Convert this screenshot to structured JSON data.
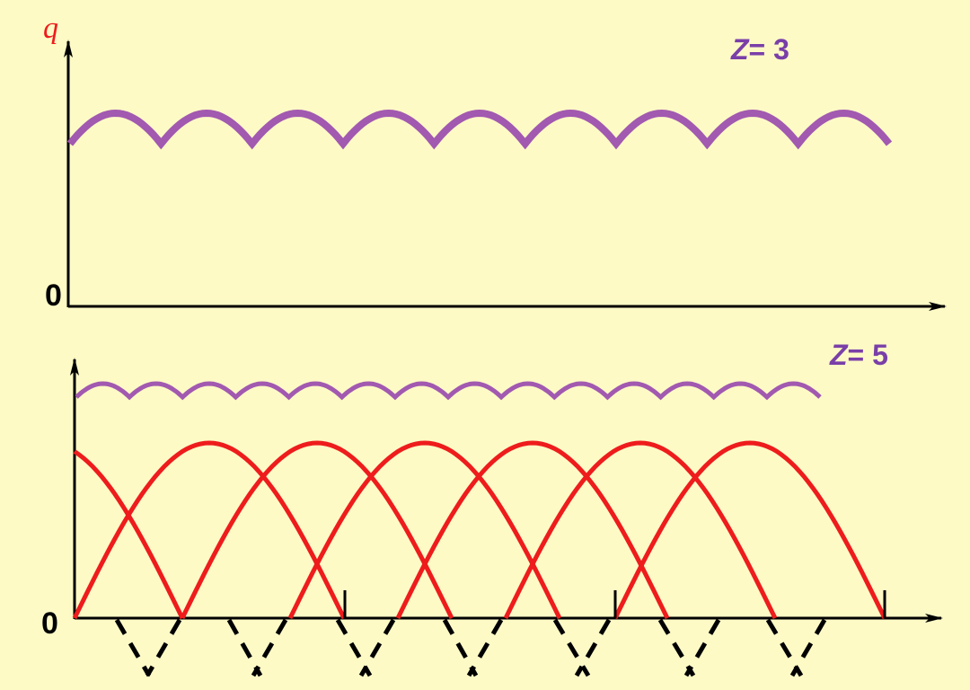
{
  "colors": {
    "background": "#fdfac6",
    "axis": "#000000",
    "total_flow": "#a259b0",
    "piston_flow": "#ee1c1c",
    "q_label": "#ee1c1c",
    "z_label": "#7a3fa8"
  },
  "top_panel": {
    "axis_label": "q",
    "origin_label": "0",
    "z_symbol": "Z",
    "z_suffix": "= 3",
    "arc_count": 9
  },
  "bottom_panel": {
    "origin_label": "0",
    "z_symbol": "Z",
    "z_suffix": "= 5",
    "ripple_arc_count": 14,
    "piston_arc_count": 7
  }
}
